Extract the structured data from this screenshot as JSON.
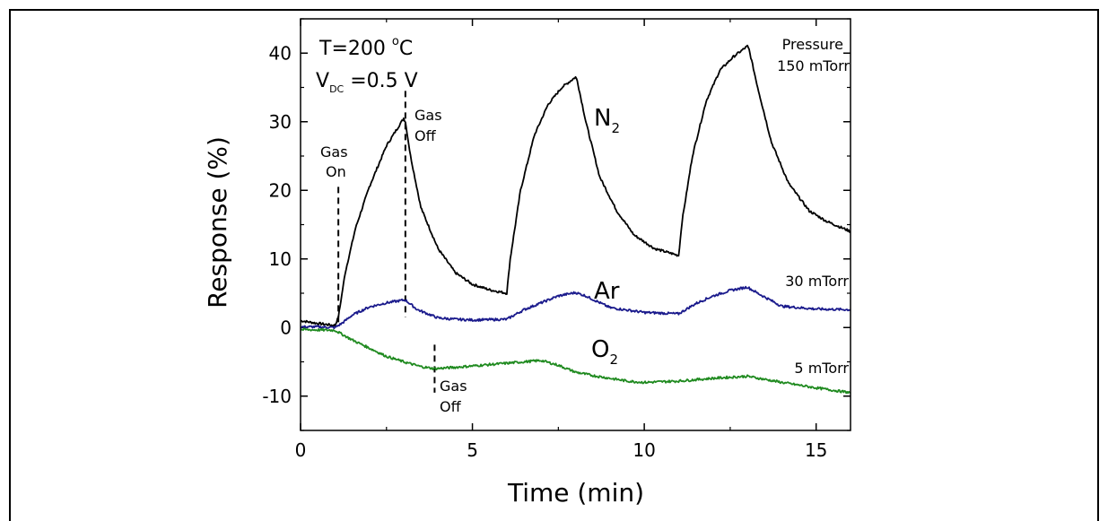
{
  "chart_data": {
    "type": "line",
    "xlabel": "Time (min)",
    "ylabel": "Response (%)",
    "xlim": [
      0,
      16
    ],
    "ylim": [
      -15,
      45
    ],
    "x_ticks": [
      0,
      5,
      10,
      15
    ],
    "y_ticks": [
      -10,
      0,
      10,
      20,
      30,
      40
    ],
    "grid": false,
    "conditions": {
      "temperature": {
        "prefix": "T=200 ",
        "sup": "o",
        "suffix": "C"
      },
      "voltage": {
        "prefix": "V",
        "sub": "DC",
        "suffix": " =0.5 V"
      }
    },
    "series": [
      {
        "key": "n2",
        "name_main": "N",
        "name_sub": "2",
        "pressure": "150 mTorr",
        "color": "#000000",
        "x": [
          0,
          0.5,
          1.0,
          1.1,
          1.3,
          1.6,
          2.0,
          2.5,
          3.0,
          3.05,
          3.2,
          3.5,
          4.0,
          4.5,
          5.0,
          5.5,
          6.0,
          6.1,
          6.4,
          6.8,
          7.2,
          7.6,
          8.0,
          8.05,
          8.3,
          8.7,
          9.2,
          9.7,
          10.3,
          11.0,
          11.1,
          11.4,
          11.8,
          12.2,
          12.6,
          13.0,
          13.05,
          13.3,
          13.7,
          14.2,
          14.8,
          15.3,
          16.0
        ],
        "values": [
          1.0,
          0.6,
          0.3,
          1.5,
          8.0,
          14.5,
          20.5,
          26.5,
          30.5,
          30.0,
          25.0,
          17.5,
          11.5,
          8.0,
          6.3,
          5.5,
          5.0,
          10.0,
          20.0,
          28.0,
          32.5,
          35.0,
          36.5,
          36.0,
          30.0,
          22.0,
          17.0,
          13.5,
          11.5,
          10.5,
          15.5,
          25.0,
          33.0,
          37.5,
          39.5,
          41.0,
          40.5,
          35.0,
          27.0,
          21.0,
          17.0,
          15.5,
          14.0
        ]
      },
      {
        "key": "ar",
        "name_main": "Ar",
        "name_sub": "",
        "pressure": "30 mTorr",
        "color": "#1a1a8c",
        "x": [
          0,
          0.5,
          1.0,
          1.2,
          1.5,
          2.0,
          2.5,
          3.0,
          3.05,
          3.4,
          4.0,
          4.5,
          5.0,
          6.0,
          6.5,
          7.0,
          7.5,
          8.0,
          8.3,
          9.0,
          10.0,
          11.0,
          11.5,
          12.0,
          12.5,
          13.0,
          13.3,
          14.0,
          15.0,
          16.0
        ],
        "values": [
          0.1,
          0.1,
          0.0,
          0.6,
          1.8,
          3.0,
          3.6,
          4.0,
          4.0,
          2.6,
          1.4,
          1.2,
          1.1,
          1.2,
          2.6,
          3.6,
          4.6,
          5.1,
          4.6,
          2.9,
          2.2,
          2.0,
          3.5,
          4.6,
          5.4,
          5.9,
          5.0,
          3.1,
          2.7,
          2.6
        ]
      },
      {
        "key": "o2",
        "name_main": "O",
        "name_sub": "2",
        "pressure": "5 mTorr",
        "color": "#1f8a1f",
        "x": [
          0,
          1.0,
          1.5,
          2.0,
          2.5,
          3.0,
          3.5,
          3.9,
          4.5,
          5.0,
          6.0,
          7.0,
          7.5,
          8.0,
          8.5,
          9.5,
          10.0,
          11.0,
          12.0,
          13.0,
          14.0,
          15.0,
          16.0
        ],
        "values": [
          -0.3,
          -0.4,
          -1.8,
          -3.0,
          -4.2,
          -5.0,
          -5.7,
          -6.0,
          -5.8,
          -5.6,
          -5.2,
          -4.8,
          -5.5,
          -6.5,
          -7.0,
          -7.8,
          -8.0,
          -7.8,
          -7.4,
          -7.1,
          -8.0,
          -8.8,
          -9.5
        ]
      }
    ],
    "annotations": {
      "pressure_header": "Pressure",
      "gas_on": {
        "line1": "Gas",
        "line2": "On",
        "x": 1.1
      },
      "gas_off_n2": {
        "line1": "Gas",
        "line2": "Off",
        "x": 3.05
      },
      "gas_off_o2": {
        "line1": "Gas",
        "line2": "Off",
        "x": 3.9
      }
    }
  }
}
